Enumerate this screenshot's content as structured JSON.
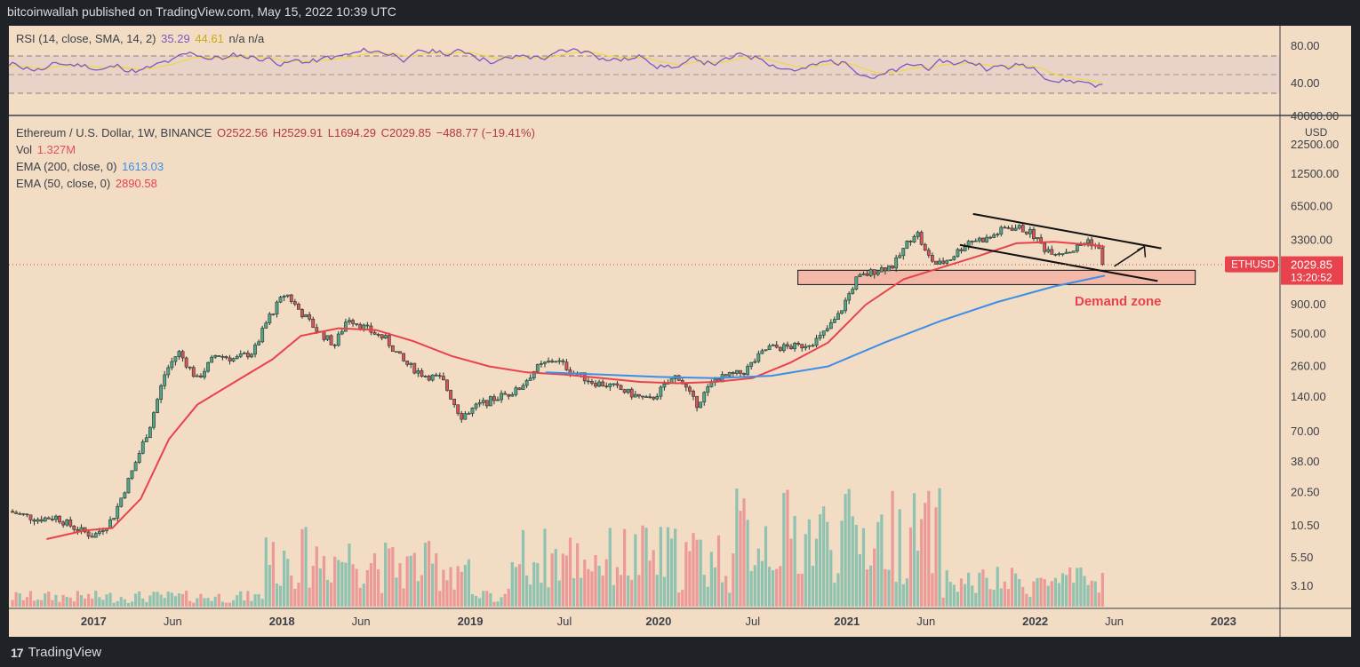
{
  "header": {
    "publisher_text": "bitcoinwallah published on TradingView.com, May 15, 2022 10:39 UTC"
  },
  "footer": {
    "brand": "TradingView"
  },
  "rsi_panel": {
    "label": "RSI (14, close, SMA, 14, 2)",
    "rsi_value": "35.29",
    "sma_value": "44.61",
    "extra": "n/a  n/a",
    "ticks": [
      "80.00",
      "40.00"
    ]
  },
  "main_legend": {
    "symbol_line": "Ethereum / U.S. Dollar, 1W, BINANCE",
    "open": "O2522.56",
    "high": "H2529.91",
    "low": "L1694.29",
    "close": "C2029.85",
    "change": "−488.77 (−19.41%)",
    "vol_label": "Vol",
    "vol_value": "1.327M",
    "ema200_label": "EMA (200, close, 0)",
    "ema200_value": "1613.03",
    "ema50_label": "EMA (50, close, 0)",
    "ema50_value": "2890.58"
  },
  "price_axis": {
    "currency": "USD",
    "ticks": [
      "40000.00",
      "22500.00",
      "12500.00",
      "6500.00",
      "3300.00",
      "900.00",
      "500.00",
      "260.00",
      "140.00",
      "70.00",
      "38.00",
      "20.50",
      "10.50",
      "5.50",
      "3.10"
    ],
    "symbol_tag": "ETHUSD",
    "last_price": "2029.85",
    "countdown": "13:20:52"
  },
  "time_axis": {
    "labels": [
      {
        "t": 2017.0,
        "text": "2017",
        "bold": true
      },
      {
        "t": 2017.42,
        "text": "Jun",
        "bold": false
      },
      {
        "t": 2018.0,
        "text": "2018",
        "bold": true
      },
      {
        "t": 2018.42,
        "text": "Jun",
        "bold": false
      },
      {
        "t": 2019.0,
        "text": "2019",
        "bold": true
      },
      {
        "t": 2019.5,
        "text": "Jul",
        "bold": false
      },
      {
        "t": 2020.0,
        "text": "2020",
        "bold": true
      },
      {
        "t": 2020.5,
        "text": "Jul",
        "bold": false
      },
      {
        "t": 2021.0,
        "text": "2021",
        "bold": true
      },
      {
        "t": 2021.42,
        "text": "Jun",
        "bold": false
      },
      {
        "t": 2022.0,
        "text": "2022",
        "bold": true
      },
      {
        "t": 2022.42,
        "text": "Jun",
        "bold": false
      },
      {
        "t": 2023.0,
        "text": "2023",
        "bold": true
      }
    ]
  },
  "annotation": {
    "demand_zone_label": "Demand zone"
  },
  "colors": {
    "background": "#f2dcc4",
    "up": "#56a38a",
    "down": "#e0505a",
    "rsi_line": "#7e57c2",
    "rsi_sma": "#f0d74a",
    "ema50": "#e8434c",
    "ema200": "#3d8ee6",
    "demand_zone": "#f4b8a8",
    "axis_bg": "#f2dcc4",
    "tag_bg": "#e8434c"
  },
  "chart_data": {
    "type": "candlestick",
    "scale": "log",
    "ylim": [
      3,
      40000
    ],
    "xlim": [
      2016.55,
      2023.3
    ],
    "price_path": [
      [
        2016.55,
        14
      ],
      [
        2016.7,
        12
      ],
      [
        2016.8,
        12.5
      ],
      [
        2016.9,
        10
      ],
      [
        2017.0,
        8.5
      ],
      [
        2017.1,
        12
      ],
      [
        2017.2,
        30
      ],
      [
        2017.3,
        80
      ],
      [
        2017.38,
        230
      ],
      [
        2017.45,
        350
      ],
      [
        2017.55,
        200
      ],
      [
        2017.65,
        330
      ],
      [
        2017.75,
        300
      ],
      [
        2017.85,
        350
      ],
      [
        2017.93,
        700
      ],
      [
        2018.02,
        1150
      ],
      [
        2018.08,
        850
      ],
      [
        2018.18,
        550
      ],
      [
        2018.28,
        400
      ],
      [
        2018.35,
        700
      ],
      [
        2018.45,
        550
      ],
      [
        2018.55,
        450
      ],
      [
        2018.65,
        280
      ],
      [
        2018.75,
        220
      ],
      [
        2018.85,
        200
      ],
      [
        2018.95,
        95
      ],
      [
        2019.05,
        120
      ],
      [
        2019.15,
        140
      ],
      [
        2019.25,
        160
      ],
      [
        2019.35,
        250
      ],
      [
        2019.45,
        300
      ],
      [
        2019.55,
        230
      ],
      [
        2019.65,
        190
      ],
      [
        2019.75,
        175
      ],
      [
        2019.85,
        150
      ],
      [
        2019.95,
        130
      ],
      [
        2020.1,
        220
      ],
      [
        2020.2,
        120
      ],
      [
        2020.3,
        200
      ],
      [
        2020.45,
        230
      ],
      [
        2020.58,
        380
      ],
      [
        2020.65,
        380
      ],
      [
        2020.75,
        390
      ],
      [
        2020.85,
        450
      ],
      [
        2020.95,
        700
      ],
      [
        2021.05,
        1500
      ],
      [
        2021.15,
        1800
      ],
      [
        2021.25,
        2000
      ],
      [
        2021.33,
        3300
      ],
      [
        2021.37,
        4000
      ],
      [
        2021.42,
        2500
      ],
      [
        2021.48,
        2000
      ],
      [
        2021.55,
        2300
      ],
      [
        2021.65,
        3300
      ],
      [
        2021.75,
        3400
      ],
      [
        2021.85,
        4300
      ],
      [
        2021.92,
        4200
      ],
      [
        2021.98,
        3800
      ],
      [
        2022.05,
        2800
      ],
      [
        2022.12,
        2600
      ],
      [
        2022.2,
        2700
      ],
      [
        2022.28,
        3300
      ],
      [
        2022.33,
        2900
      ],
      [
        2022.37,
        2029
      ]
    ],
    "ema50_path": [
      [
        2016.75,
        8
      ],
      [
        2016.95,
        9.5
      ],
      [
        2017.1,
        10
      ],
      [
        2017.25,
        18
      ],
      [
        2017.4,
        60
      ],
      [
        2017.55,
        120
      ],
      [
        2017.75,
        190
      ],
      [
        2017.95,
        300
      ],
      [
        2018.1,
        480
      ],
      [
        2018.3,
        560
      ],
      [
        2018.5,
        540
      ],
      [
        2018.7,
        430
      ],
      [
        2018.9,
        320
      ],
      [
        2019.1,
        260
      ],
      [
        2019.3,
        230
      ],
      [
        2019.5,
        220
      ],
      [
        2019.7,
        205
      ],
      [
        2019.9,
        190
      ],
      [
        2020.1,
        185
      ],
      [
        2020.3,
        190
      ],
      [
        2020.5,
        205
      ],
      [
        2020.7,
        280
      ],
      [
        2020.9,
        420
      ],
      [
        2021.1,
        900
      ],
      [
        2021.3,
        1500
      ],
      [
        2021.5,
        1900
      ],
      [
        2021.7,
        2400
      ],
      [
        2021.9,
        3100
      ],
      [
        2022.1,
        3200
      ],
      [
        2022.3,
        3000
      ],
      [
        2022.37,
        2890
      ]
    ],
    "ema200_path": [
      [
        2019.4,
        230
      ],
      [
        2019.7,
        220
      ],
      [
        2020.0,
        210
      ],
      [
        2020.3,
        205
      ],
      [
        2020.6,
        215
      ],
      [
        2020.9,
        260
      ],
      [
        2021.2,
        420
      ],
      [
        2021.5,
        650
      ],
      [
        2021.8,
        950
      ],
      [
        2022.1,
        1300
      ],
      [
        2022.37,
        1613
      ]
    ],
    "demand_zone": {
      "x0": 2020.74,
      "x1": 2022.85,
      "y0": 1350,
      "y1": 1800
    },
    "channel_upper": [
      [
        2021.67,
        5600
      ],
      [
        2022.67,
        2800
      ]
    ],
    "channel_lower": [
      [
        2021.6,
        3000
      ],
      [
        2022.65,
        1450
      ]
    ],
    "arrow": [
      [
        2022.42,
        1950
      ],
      [
        2022.58,
        2900
      ]
    ],
    "last_close": 2029.85
  }
}
